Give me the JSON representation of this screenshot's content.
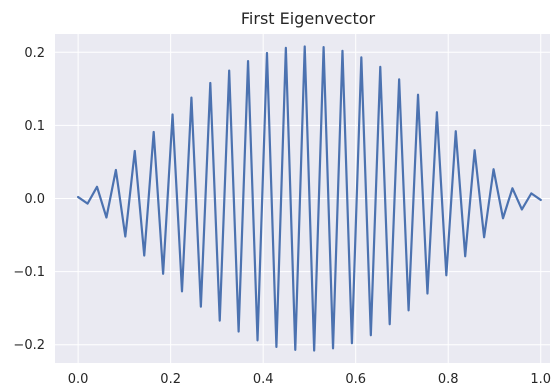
{
  "chart_data": {
    "type": "line",
    "title": "First Eigenvector",
    "xlabel": "",
    "ylabel": "",
    "xlim": [
      -0.05,
      1.02
    ],
    "ylim": [
      -0.225,
      0.225
    ],
    "xticks": [
      0.0,
      0.2,
      0.4,
      0.6,
      0.8,
      1.0
    ],
    "xtick_labels": [
      "0.0",
      "0.2",
      "0.4",
      "0.6",
      "0.8",
      "1.0"
    ],
    "yticks": [
      -0.2,
      -0.1,
      0.0,
      0.1,
      0.2
    ],
    "ytick_labels": [
      "−0.2",
      "−0.1",
      "0.0",
      "0.1",
      "0.2"
    ],
    "grid": true,
    "legend": "none",
    "colors": {
      "background": "#eaeaf2",
      "grid": "#ffffff",
      "line": "#4c72b0"
    },
    "series": [
      {
        "color": "#4c72b0",
        "x": [
          0.0,
          0.0204,
          0.0408,
          0.0612,
          0.0816,
          0.102,
          0.1224,
          0.1429,
          0.1633,
          0.1837,
          0.2041,
          0.2245,
          0.2449,
          0.2653,
          0.2857,
          0.3061,
          0.3265,
          0.3469,
          0.3673,
          0.3878,
          0.4082,
          0.4286,
          0.449,
          0.4694,
          0.4898,
          0.5102,
          0.5306,
          0.551,
          0.5714,
          0.5918,
          0.6122,
          0.6327,
          0.6531,
          0.6735,
          0.6939,
          0.7143,
          0.7347,
          0.7551,
          0.7755,
          0.7959,
          0.8163,
          0.8367,
          0.8571,
          0.8776,
          0.898,
          0.9184,
          0.9388,
          0.9592,
          0.9796,
          1.0
        ],
        "values": [
          0.002,
          -0.007,
          0.016,
          -0.026,
          0.039,
          -0.052,
          0.065,
          -0.078,
          0.091,
          -0.103,
          0.115,
          -0.127,
          0.138,
          -0.148,
          0.158,
          -0.167,
          0.175,
          -0.182,
          0.188,
          -0.194,
          0.199,
          -0.203,
          0.206,
          -0.207,
          0.208,
          -0.208,
          0.207,
          -0.205,
          0.202,
          -0.198,
          0.193,
          -0.187,
          0.18,
          -0.172,
          0.163,
          -0.153,
          0.142,
          -0.13,
          0.118,
          -0.105,
          0.092,
          -0.079,
          0.066,
          -0.053,
          0.04,
          -0.027,
          0.014,
          -0.015,
          0.007,
          -0.002
        ]
      }
    ]
  }
}
